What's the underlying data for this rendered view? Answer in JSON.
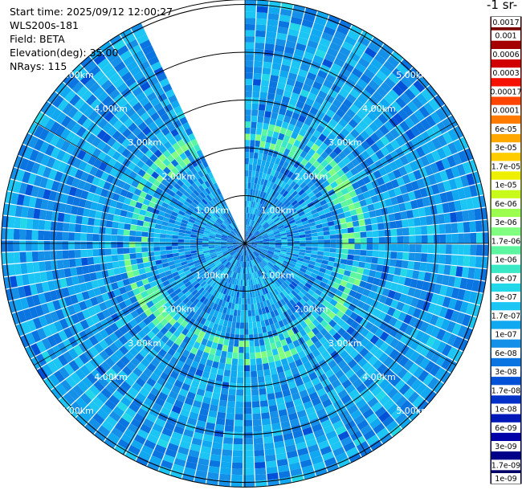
{
  "header": {
    "start_time": "Start time: 2025/09/12 12:00:27",
    "instrument": "WLS200s-181",
    "field": "Field: BETA",
    "elevation": "Elevation(deg): 35.00",
    "nrays": "NRays: 115"
  },
  "colorbar": {
    "unit_label": "-1 sr-",
    "ticks": [
      "0.0017",
      "0.001",
      "0.0006",
      "0.0003",
      "0.00017",
      "0.0001",
      "6e-05",
      "3e-05",
      "1.7e-05",
      "1e-05",
      "6e-06",
      "3e-06",
      "1.7e-06",
      "1e-06",
      "6e-07",
      "3e-07",
      "1.7e-07",
      "1e-07",
      "6e-08",
      "3e-08",
      "1.7e-08",
      "1e-08",
      "6e-09",
      "3e-09",
      "1.7e-09",
      "1e-09"
    ],
    "colors": [
      "#7a0000",
      "#a40000",
      "#d10000",
      "#f51000",
      "#ff4400",
      "#ff7a00",
      "#ffa800",
      "#ffcc00",
      "#eef000",
      "#c8fa1a",
      "#9cff50",
      "#80ff80",
      "#5cf5a0",
      "#39e8c4",
      "#22d8e8",
      "#1cc6f4",
      "#10a8f0",
      "#1490e8",
      "#0a74e0",
      "#0050d8",
      "#0030c8",
      "#0018b8",
      "#0000a8",
      "#000088",
      "#00006a"
    ]
  },
  "chart_data": {
    "type": "heatmap",
    "projection": "polar PPI scan",
    "field": "BETA",
    "elevation_deg": 35.0,
    "nrays": 115,
    "range_unit": "km",
    "range_rings_km": [
      1,
      2,
      3,
      4,
      5
    ],
    "range_ring_labels": [
      "1.00km",
      "2.00km",
      "3.00km",
      "4.00km",
      "5.00km"
    ],
    "max_range_km": 5.1,
    "gap_azimuth_deg": [
      335,
      360
    ],
    "color_scale": "log",
    "value_range": [
      1e-09,
      0.0017
    ],
    "typical_value": 1e-07,
    "enhanced_band_km": [
      2.0,
      2.6
    ],
    "enhanced_band_value": 1e-06,
    "near_field_value": 1e-08,
    "grid": true
  }
}
